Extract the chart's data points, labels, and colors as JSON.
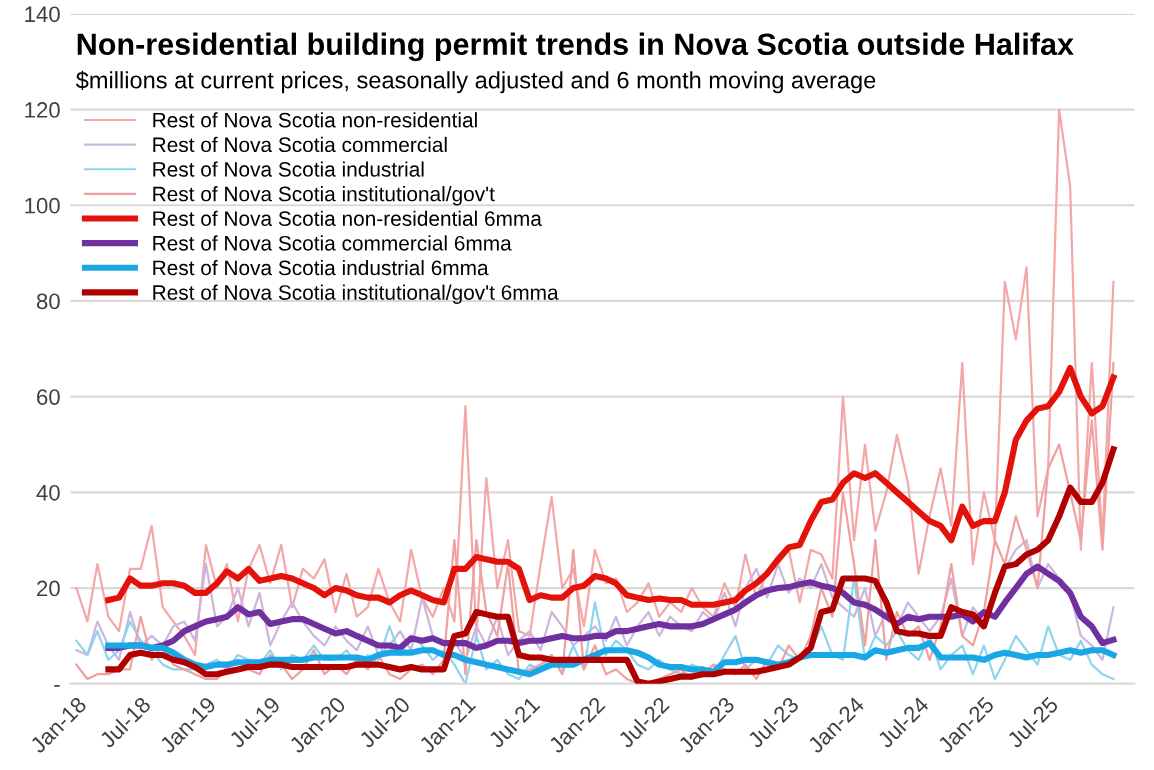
{
  "chart_data": {
    "type": "line",
    "title": "Non-residential building permit trends in Nova Scotia outside Halifax",
    "subtitle": "$millions at current prices, seasonally adjusted and 6 month moving average",
    "x": [
      "2018-01",
      "2018-02",
      "2018-03",
      "2018-04",
      "2018-05",
      "2018-06",
      "2018-07",
      "2018-08",
      "2018-09",
      "2018-10",
      "2018-11",
      "2018-12",
      "2019-01",
      "2019-02",
      "2019-03",
      "2019-04",
      "2019-05",
      "2019-06",
      "2019-07",
      "2019-08",
      "2019-09",
      "2019-10",
      "2019-11",
      "2019-12",
      "2020-01",
      "2020-02",
      "2020-03",
      "2020-04",
      "2020-05",
      "2020-06",
      "2020-07",
      "2020-08",
      "2020-09",
      "2020-10",
      "2020-11",
      "2020-12",
      "2021-01",
      "2021-02",
      "2021-03",
      "2021-04",
      "2021-05",
      "2021-06",
      "2021-07",
      "2021-08",
      "2021-09",
      "2021-10",
      "2021-11",
      "2021-12",
      "2022-01",
      "2022-02",
      "2022-03",
      "2022-04",
      "2022-05",
      "2022-06",
      "2022-07",
      "2022-08",
      "2022-09",
      "2022-10",
      "2022-11",
      "2022-12",
      "2023-01",
      "2023-02",
      "2023-03",
      "2023-04",
      "2023-05",
      "2023-06",
      "2023-07",
      "2023-08",
      "2023-09",
      "2023-10",
      "2023-11",
      "2023-12",
      "2024-01",
      "2024-02",
      "2024-03",
      "2024-04",
      "2024-05",
      "2024-06",
      "2024-07",
      "2024-08",
      "2024-09",
      "2024-10",
      "2024-11",
      "2024-12",
      "2025-01",
      "2025-02",
      "2025-03",
      "2025-04",
      "2025-05",
      "2025-06",
      "2025-07",
      "2025-08",
      "2025-09",
      "2025-10",
      "2025-11",
      "2025-12",
      "2026-01"
    ],
    "series": [
      {
        "name": "Rest of Nova Scotia non-residential",
        "color": "#f4a7a7",
        "values": [
          20,
          13,
          25,
          14,
          11,
          24,
          24,
          33,
          16,
          13,
          10,
          6,
          29,
          20,
          25,
          13,
          24,
          29,
          21,
          29,
          16,
          24,
          22,
          26,
          15,
          23,
          14,
          16,
          24,
          17,
          13,
          28,
          18,
          14,
          20,
          13,
          58,
          10,
          43,
          20,
          30,
          11,
          10,
          25,
          39,
          20,
          24,
          12,
          28,
          21,
          22,
          15,
          17,
          21,
          14,
          17,
          15,
          20,
          16,
          14,
          21,
          16,
          27,
          18,
          23,
          25,
          28,
          17,
          28,
          27,
          22,
          60,
          30,
          50,
          32,
          40,
          52,
          42,
          23,
          35,
          45,
          33,
          67,
          25,
          40,
          30,
          84,
          72,
          87,
          35,
          45,
          120,
          104,
          28,
          67,
          30,
          84
        ]
      },
      {
        "name": "Rest of Nova Scotia commercial",
        "color": "#cdb6dd",
        "values": [
          7,
          6,
          13,
          8,
          5,
          15,
          8,
          10,
          8,
          12,
          13,
          9,
          25,
          12,
          14,
          20,
          12,
          19,
          8,
          13,
          17,
          13,
          10,
          8,
          12,
          9,
          7,
          12,
          6,
          8,
          11,
          7,
          18,
          10,
          8,
          9,
          5,
          12,
          8,
          14,
          6,
          9,
          11,
          7,
          15,
          12,
          8,
          10,
          12,
          9,
          14,
          8,
          12,
          15,
          10,
          14,
          12,
          11,
          15,
          13,
          19,
          12,
          20,
          24,
          18,
          25,
          19,
          22,
          20,
          25,
          18,
          16,
          14,
          20,
          10,
          15,
          12,
          17,
          14,
          11,
          14,
          22,
          10,
          16,
          13,
          20,
          24,
          28,
          30,
          20,
          25,
          22,
          19,
          10,
          8,
          5,
          16
        ]
      },
      {
        "name": "Rest of Nova Scotia industrial",
        "color": "#8fd4ee",
        "values": [
          9,
          6,
          11,
          5,
          7,
          13,
          9,
          7,
          4,
          3,
          3,
          3,
          4,
          5,
          3,
          6,
          5,
          4,
          7,
          3,
          6,
          5,
          8,
          5,
          5,
          7,
          4,
          6,
          5,
          12,
          6,
          10,
          8,
          5,
          7,
          4,
          0,
          10,
          3,
          5,
          2,
          1,
          4,
          3,
          6,
          2,
          8,
          3,
          17,
          6,
          9,
          7,
          4,
          3,
          5,
          3,
          2,
          4,
          3,
          2,
          6,
          10,
          3,
          5,
          4,
          8,
          6,
          5,
          7,
          12,
          6,
          5,
          22,
          5,
          10,
          8,
          11,
          7,
          5,
          10,
          3,
          6,
          8,
          2,
          8,
          1,
          5,
          10,
          7,
          4,
          12,
          6,
          5,
          9,
          4,
          2,
          1
        ]
      },
      {
        "name": "Rest of Nova Scotia institutional/gov't",
        "color": "#f0a0a0",
        "values": [
          4,
          1,
          2,
          2,
          3,
          3,
          14,
          5,
          8,
          4,
          3,
          2,
          1,
          1,
          3,
          5,
          3,
          2,
          6,
          4,
          1,
          3,
          7,
          2,
          4,
          2,
          5,
          3,
          6,
          2,
          1,
          3,
          4,
          2,
          5,
          30,
          2,
          30,
          15,
          10,
          25,
          2,
          3,
          4,
          6,
          2,
          28,
          3,
          8,
          2,
          3,
          1,
          0,
          0,
          1,
          2,
          3,
          1,
          2,
          4,
          3,
          2,
          4,
          1,
          5,
          3,
          8,
          5,
          10,
          20,
          14,
          40,
          25,
          8,
          30,
          5,
          15,
          10,
          12,
          5,
          12,
          25,
          10,
          8,
          15,
          30,
          25,
          35,
          28,
          20,
          45,
          50,
          40,
          30,
          55,
          28,
          67
        ]
      },
      {
        "name": "Rest of Nova Scotia non-residential 6mma",
        "color": "#e3120b",
        "values": [
          null,
          null,
          null,
          17.5,
          18,
          22,
          20.5,
          20.5,
          21,
          21,
          20.5,
          19,
          19,
          21,
          23.5,
          22,
          24,
          21.5,
          22,
          22.5,
          22,
          21,
          20,
          18.5,
          20,
          19.5,
          18.5,
          18,
          18,
          17,
          18.5,
          19.5,
          18.5,
          17.5,
          17,
          24,
          24,
          26.5,
          26,
          25.5,
          25.5,
          24,
          17.5,
          18.5,
          18,
          18,
          20,
          20.5,
          22.5,
          22,
          21,
          18.5,
          18,
          17.5,
          17.8,
          17.5,
          17.5,
          16.5,
          16.5,
          16.5,
          17,
          17.5,
          19.5,
          21,
          23,
          26,
          28.5,
          29,
          34,
          38,
          38.5,
          42,
          44,
          43,
          44,
          42,
          40,
          38,
          36,
          34,
          33,
          30,
          37,
          33,
          34,
          34,
          40,
          51,
          55,
          57.5,
          58,
          61,
          66,
          60,
          56.5,
          58,
          64
        ]
      },
      {
        "name": "Rest of Nova Scotia commercial 6mma",
        "color": "#7030a0",
        "values": [
          null,
          null,
          null,
          7.5,
          7.5,
          8,
          8,
          7.5,
          8,
          9,
          11,
          12,
          13,
          13.5,
          14,
          16,
          14.5,
          15,
          12.5,
          13,
          13.5,
          13.5,
          12.5,
          11.5,
          10.5,
          11,
          10,
          9,
          8,
          8,
          7.5,
          9.5,
          9,
          9.5,
          8.5,
          8.5,
          8.5,
          7.5,
          8,
          9,
          9,
          8.5,
          9,
          9,
          9.5,
          10,
          9.5,
          9.5,
          10,
          10,
          11,
          11,
          11.5,
          12,
          12.5,
          12,
          12,
          12,
          12.5,
          13.5,
          14.5,
          15.5,
          17,
          18.5,
          19.5,
          20,
          20.2,
          20.8,
          21.2,
          20.5,
          20,
          19,
          17,
          16.5,
          15.5,
          14,
          12.5,
          14,
          13.5,
          14,
          14,
          14,
          14.5,
          13,
          15,
          14,
          17,
          20,
          23,
          24.5,
          23,
          21.5,
          19,
          14,
          12,
          8.5,
          9.2
        ]
      },
      {
        "name": "Rest of Nova Scotia industrial 6mma",
        "color": "#1aa7e6",
        "values": [
          null,
          null,
          null,
          8,
          8,
          8,
          8,
          7.5,
          7.5,
          6.5,
          5,
          4,
          3.5,
          4,
          4,
          4.5,
          4.5,
          4.5,
          5,
          5,
          5,
          5,
          5.5,
          5.5,
          5.5,
          5.5,
          5.5,
          5,
          6,
          6.5,
          6.5,
          6.5,
          7,
          7,
          6,
          6,
          5,
          4.5,
          4,
          3.5,
          3,
          2.5,
          2,
          3,
          4,
          4,
          4,
          5,
          6,
          7,
          7,
          7,
          6.5,
          5.5,
          4,
          3.5,
          3.5,
          3,
          3,
          2.5,
          4.5,
          4.5,
          5,
          5,
          4.5,
          4,
          4.5,
          5.5,
          6,
          6,
          6,
          6,
          6,
          5.5,
          7,
          6.5,
          7,
          7.5,
          7.5,
          8.5,
          5.5,
          5.5,
          5.5,
          5.5,
          5,
          6,
          6.5,
          6,
          5.5,
          6,
          6,
          6.5,
          7,
          6.5,
          7,
          7,
          6
        ]
      },
      {
        "name": "Rest of Nova Scotia institutional/gov't 6mma",
        "color": "#b00000",
        "values": [
          null,
          null,
          null,
          3,
          3,
          6,
          6.5,
          6,
          6,
          5,
          4.5,
          3.5,
          2,
          2,
          2.5,
          3,
          3.5,
          3.5,
          4,
          4,
          3.5,
          3.5,
          3.5,
          3.5,
          3.5,
          3.5,
          4,
          4,
          4,
          3.5,
          3,
          3.5,
          3,
          3,
          3,
          10,
          10.5,
          15,
          14.5,
          14,
          14,
          6,
          5.5,
          5.5,
          5,
          5,
          5,
          5,
          5,
          5,
          5,
          5,
          0.5,
          0,
          0.5,
          1,
          1.5,
          1.5,
          2,
          2,
          2.5,
          2.5,
          2.5,
          2.5,
          3,
          3.5,
          4,
          5.5,
          7.5,
          15,
          15.5,
          22,
          22,
          22,
          21.5,
          17,
          11,
          10.5,
          10.5,
          10,
          10,
          16,
          15,
          14.5,
          12,
          19,
          24.5,
          25,
          27,
          28,
          30,
          35,
          41,
          38,
          38,
          42,
          49
        ]
      }
    ],
    "xlim": [
      "2017-12-15",
      "2026-03-01"
    ],
    "xticks": [
      {
        "value": "2018-01",
        "label": "Jan-18"
      },
      {
        "value": "2018-07",
        "label": "Jul-18"
      },
      {
        "value": "2019-01",
        "label": "Jan-19"
      },
      {
        "value": "2019-07",
        "label": "Jul-19"
      },
      {
        "value": "2020-01",
        "label": "Jan-20"
      },
      {
        "value": "2020-07",
        "label": "Jul-20"
      },
      {
        "value": "2021-01",
        "label": "Jan-21"
      },
      {
        "value": "2021-07",
        "label": "Jul-21"
      },
      {
        "value": "2022-01",
        "label": "Jan-22"
      },
      {
        "value": "2022-07",
        "label": "Jul-22"
      },
      {
        "value": "2023-01",
        "label": "Jan-23"
      },
      {
        "value": "2023-07",
        "label": "Jul-23"
      },
      {
        "value": "2024-01",
        "label": "Jan-24"
      },
      {
        "value": "2024-07",
        "label": "Jul-24"
      },
      {
        "value": "2025-01",
        "label": "Jan-25"
      },
      {
        "value": "2025-07",
        "label": "Jul-25"
      }
    ],
    "ylim": [
      0,
      140
    ],
    "yticks": [
      {
        "value": 0,
        "label": "-"
      },
      20,
      40,
      60,
      80,
      100,
      120,
      140
    ],
    "grid": "y",
    "legend": "top left",
    "marker": "none",
    "line_style": "solid"
  }
}
